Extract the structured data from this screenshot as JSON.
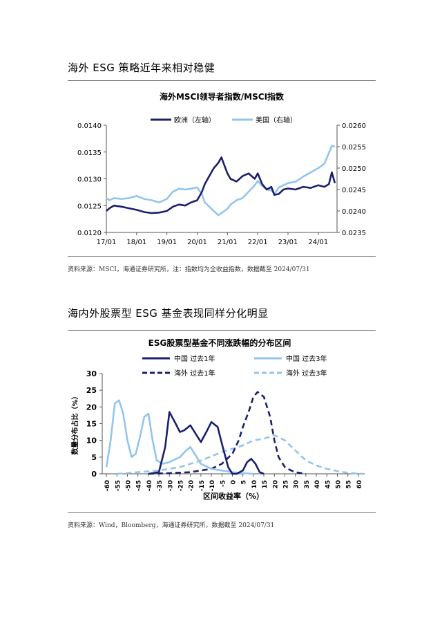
{
  "section1": {
    "title": "海外 ESG 策略近年来相对稳健",
    "source": "资料来源：MSCI，海通证券研究所，注：指数均为全收益指数，数据截至 2024/07/31"
  },
  "section2": {
    "title": "海内外股票型 ESG 基金表现同样分化明显",
    "source": "资料来源：Wind，Bloomberg，海通证券研究所，数据截至 2024/07/31"
  },
  "chart_data": [
    {
      "type": "line",
      "title": "海外MSCI领导者指数/MSCI指数",
      "x_ticks": [
        "17/01",
        "18/01",
        "19/01",
        "20/01",
        "21/01",
        "22/01",
        "23/01",
        "24/01"
      ],
      "y_left": {
        "ticks": [
          "0.0120",
          "0.0125",
          "0.0130",
          "0.0135",
          "0.0140"
        ],
        "lim": [
          0.012,
          0.014
        ]
      },
      "y_right": {
        "ticks": [
          "0.0235",
          "0.0240",
          "0.0245",
          "0.0250",
          "0.0255",
          "0.0260"
        ],
        "lim": [
          0.0235,
          0.026
        ]
      },
      "grid": false,
      "legend": "top",
      "series": [
        {
          "name": "欧洲（左轴）",
          "color": "#1a1f6e",
          "axis": "left",
          "x": [
            2017.0,
            2017.1,
            2017.25,
            2017.5,
            2017.75,
            2018.0,
            2018.25,
            2018.5,
            2018.75,
            2019.0,
            2019.2,
            2019.4,
            2019.6,
            2019.8,
            2020.0,
            2020.15,
            2020.25,
            2020.4,
            2020.55,
            2020.7,
            2020.8,
            2020.9,
            2021.0,
            2021.1,
            2021.3,
            2021.5,
            2021.7,
            2021.9,
            2022.0,
            2022.15,
            2022.3,
            2022.45,
            2022.55,
            2022.7,
            2022.85,
            2023.0,
            2023.25,
            2023.5,
            2023.75,
            2024.0,
            2024.2,
            2024.35,
            2024.45,
            2024.55
          ],
          "values": [
            0.0124,
            0.01245,
            0.0125,
            0.01248,
            0.01245,
            0.01242,
            0.01238,
            0.01236,
            0.01237,
            0.0124,
            0.01248,
            0.01252,
            0.0125,
            0.01256,
            0.0126,
            0.01275,
            0.0129,
            0.01305,
            0.0132,
            0.0133,
            0.0134,
            0.01325,
            0.0131,
            0.013,
            0.01295,
            0.01305,
            0.0131,
            0.013,
            0.0131,
            0.0129,
            0.0128,
            0.01285,
            0.0127,
            0.01272,
            0.0128,
            0.01282,
            0.0128,
            0.01285,
            0.01283,
            0.01288,
            0.01285,
            0.0129,
            0.01312,
            0.01292
          ]
        },
        {
          "name": "美国（右轴）",
          "color": "#92c5ec",
          "axis": "right",
          "x": [
            2017.0,
            2017.1,
            2017.25,
            2017.5,
            2017.75,
            2018.0,
            2018.25,
            2018.5,
            2018.75,
            2019.0,
            2019.2,
            2019.4,
            2019.6,
            2019.8,
            2020.0,
            2020.15,
            2020.25,
            2020.4,
            2020.55,
            2020.7,
            2020.8,
            2020.9,
            2021.0,
            2021.1,
            2021.3,
            2021.5,
            2021.7,
            2021.9,
            2022.0,
            2022.15,
            2022.3,
            2022.45,
            2022.55,
            2022.7,
            2022.85,
            2023.0,
            2023.25,
            2023.5,
            2023.75,
            2024.0,
            2024.2,
            2024.35,
            2024.45,
            2024.55
          ],
          "values": [
            0.0243,
            0.02425,
            0.0243,
            0.02428,
            0.0243,
            0.02435,
            0.02428,
            0.02425,
            0.0242,
            0.02428,
            0.02445,
            0.02452,
            0.0245,
            0.02452,
            0.02455,
            0.0244,
            0.0242,
            0.0241,
            0.024,
            0.0239,
            0.02395,
            0.024,
            0.02405,
            0.02415,
            0.02425,
            0.0243,
            0.02445,
            0.0246,
            0.0247,
            0.02458,
            0.0245,
            0.02448,
            0.0244,
            0.02455,
            0.0246,
            0.02465,
            0.02468,
            0.0248,
            0.0249,
            0.025,
            0.0251,
            0.02535,
            0.02552,
            0.0255
          ]
        }
      ]
    },
    {
      "type": "line",
      "title": "ESG股票型基金不同涨跌幅的分布区间",
      "xlabel": "区间收益率（%）",
      "ylabel": "数量分布占比（%）",
      "x_ticks": [
        -60,
        -55,
        -50,
        -45,
        -40,
        -35,
        -30,
        -25,
        -20,
        -15,
        -10,
        -5,
        0,
        5,
        10,
        15,
        20,
        25,
        30,
        35,
        40,
        45,
        50,
        55,
        60
      ],
      "ylim": [
        0,
        30
      ],
      "y_ticks": [
        0,
        5,
        10,
        15,
        20,
        25,
        30
      ],
      "grid": false,
      "legend": "top",
      "series": [
        {
          "name": "中国 过去1年",
          "color": "#1a1f6e",
          "style": "solid",
          "x": [
            -40,
            -35,
            -32,
            -30,
            -27,
            -25,
            -23,
            -20,
            -17,
            -15,
            -12,
            -10,
            -7,
            -5,
            -2,
            0,
            2,
            5,
            7,
            9,
            11,
            13,
            15
          ],
          "values": [
            0,
            0.5,
            8,
            18.5,
            15,
            12.5,
            13,
            14.5,
            11.5,
            9.5,
            13,
            15.5,
            14,
            9,
            2,
            0,
            0,
            1,
            3.5,
            4.5,
            3,
            0.5,
            0
          ]
        },
        {
          "name": "中国 过去3年",
          "color": "#92c5ec",
          "style": "solid",
          "x": [
            -60,
            -58,
            -56,
            -54,
            -52,
            -50,
            -48,
            -46,
            -44,
            -42,
            -40,
            -38,
            -36,
            -33,
            -30,
            -25,
            -22,
            -20,
            -18,
            -15,
            -10,
            -5,
            0,
            5,
            10
          ],
          "values": [
            2,
            10,
            21,
            22,
            18,
            10,
            5,
            6,
            11,
            17,
            18,
            10,
            4,
            3,
            3.5,
            5,
            7,
            8,
            6,
            3,
            1.5,
            1,
            0.5,
            0.2,
            0
          ]
        },
        {
          "name": "海外 过去1年",
          "color": "#1a1f6e",
          "style": "dash",
          "x": [
            -40,
            -30,
            -20,
            -10,
            -5,
            0,
            3,
            5,
            8,
            10,
            12,
            15,
            18,
            20,
            22,
            25,
            28,
            30,
            35
          ],
          "values": [
            0,
            0.2,
            0.5,
            1.5,
            3,
            6,
            10,
            14,
            19,
            23,
            24.5,
            23,
            17,
            10,
            5,
            2,
            1,
            0.5,
            0
          ]
        },
        {
          "name": "海外 过去3年",
          "color": "#92c5ec",
          "style": "dash",
          "x": [
            -55,
            -45,
            -35,
            -25,
            -15,
            -5,
            0,
            5,
            10,
            15,
            20,
            22,
            25,
            30,
            35,
            40,
            45,
            50,
            55,
            60,
            62
          ],
          "values": [
            0,
            0.5,
            1,
            2,
            4,
            6.5,
            7.5,
            8.5,
            10,
            10.5,
            11.5,
            11,
            10,
            7,
            4,
            2.5,
            1.5,
            0.8,
            0.3,
            0.1,
            0
          ]
        }
      ]
    }
  ]
}
